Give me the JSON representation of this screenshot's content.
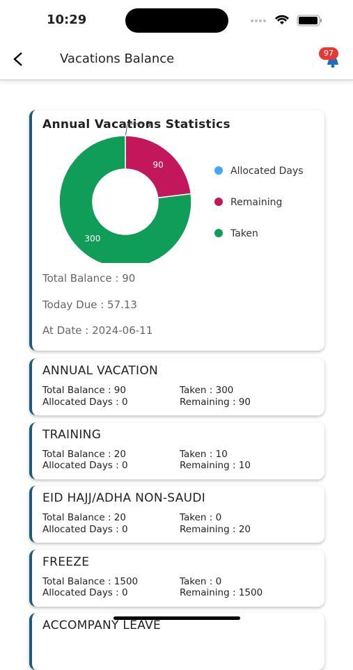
{
  "status_bar": {
    "time": "10:29"
  },
  "header": {
    "title": "Vacations Balance",
    "badge": "97"
  },
  "stats_card": {
    "title": "Annual Vacations Statistics",
    "chart_data": {
      "type": "pie",
      "donut": true,
      "categories": [
        "Allocated Days",
        "Remaining",
        "Taken"
      ],
      "values": [
        0,
        90,
        300
      ],
      "colors": [
        "#42a5f5",
        "#c2185b",
        "#0f9d58"
      ]
    },
    "lines": [
      "Total Balance : 90",
      "Today Due : 57.13",
      "At Date : 2024-06-11"
    ]
  },
  "cards": [
    {
      "title": "ANNUAL VACATION",
      "fields": [
        "Total Balance : 90",
        "Taken : 300",
        "Allocated Days : 0",
        "Remaining : 90"
      ]
    },
    {
      "title": "TRAINING",
      "fields": [
        "Total Balance : 20",
        "Taken : 10",
        "Allocated Days : 0",
        "Remaining : 10"
      ]
    },
    {
      "title": "EID HAJJ/ADHA NON-SAUDI",
      "fields": [
        "Total Balance : 20",
        "Taken : 0",
        "Allocated Days : 0",
        "Remaining : 20"
      ]
    },
    {
      "title": "FREEZE",
      "fields": [
        "Total Balance : 1500",
        "Taken : 0",
        "Allocated Days : 0",
        "Remaining : 1500"
      ]
    },
    {
      "title": "ACCOMPANY LEAVE",
      "fields": []
    }
  ]
}
